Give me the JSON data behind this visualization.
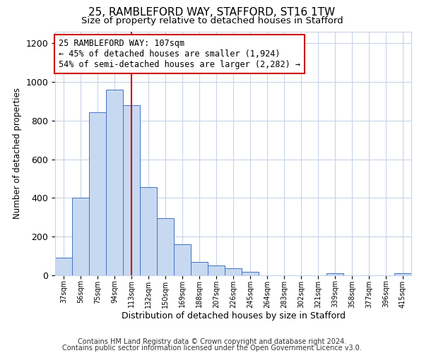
{
  "title": "25, RAMBLEFORD WAY, STAFFORD, ST16 1TW",
  "subtitle": "Size of property relative to detached houses in Stafford",
  "xlabel": "Distribution of detached houses by size in Stafford",
  "ylabel": "Number of detached properties",
  "bar_labels": [
    "37sqm",
    "56sqm",
    "75sqm",
    "94sqm",
    "113sqm",
    "132sqm",
    "150sqm",
    "169sqm",
    "188sqm",
    "207sqm",
    "226sqm",
    "245sqm",
    "264sqm",
    "283sqm",
    "302sqm",
    "321sqm",
    "339sqm",
    "358sqm",
    "377sqm",
    "396sqm",
    "415sqm"
  ],
  "bar_values": [
    90,
    400,
    845,
    960,
    880,
    455,
    295,
    160,
    70,
    50,
    35,
    18,
    0,
    0,
    0,
    0,
    10,
    0,
    0,
    0,
    10
  ],
  "bar_color": "#c6d9f1",
  "bar_edge_color": "#4472c4",
  "vline_x": 4,
  "vline_color": "#cc0000",
  "ylim": [
    0,
    1260
  ],
  "annotation_text": "25 RAMBLEFORD WAY: 107sqm\n← 45% of detached houses are smaller (1,924)\n54% of semi-detached houses are larger (2,282) →",
  "annotation_box_color": "#ffffff",
  "annotation_box_edge_color": "#cc0000",
  "footer1": "Contains HM Land Registry data © Crown copyright and database right 2024.",
  "footer2": "Contains public sector information licensed under the Open Government Licence v3.0.",
  "title_fontsize": 11,
  "subtitle_fontsize": 9.5,
  "annotation_fontsize": 8.5,
  "footer_fontsize": 7,
  "background_color": "#ffffff",
  "grid_color": "#c8d4e8"
}
